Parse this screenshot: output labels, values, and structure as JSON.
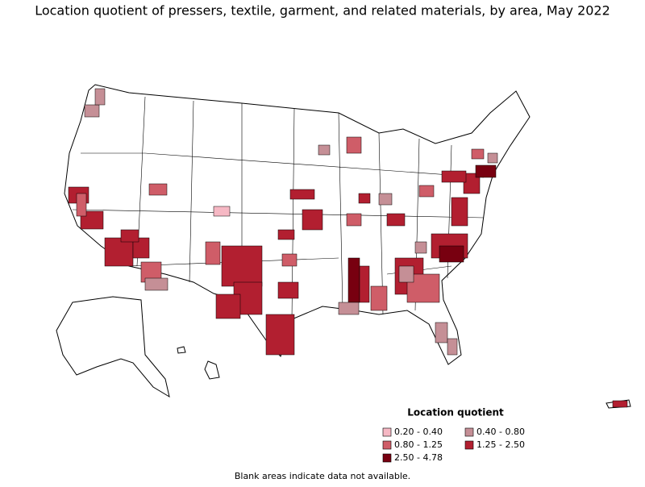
{
  "title": "Location quotient of pressers, textile, garment, and related materials, by area, May 2022",
  "legend": {
    "title": "Location quotient",
    "items": [
      {
        "label": "0.20 - 0.40",
        "color": "#f6b8c4"
      },
      {
        "label": "0.40 - 0.80",
        "color": "#c58f96"
      },
      {
        "label": "0.80 - 1.25",
        "color": "#cf5d68"
      },
      {
        "label": "1.25 - 2.50",
        "color": "#b21f30"
      },
      {
        "label": "2.50 - 4.78",
        "color": "#780010"
      }
    ]
  },
  "footnote": "Blank areas indicate data not available."
}
